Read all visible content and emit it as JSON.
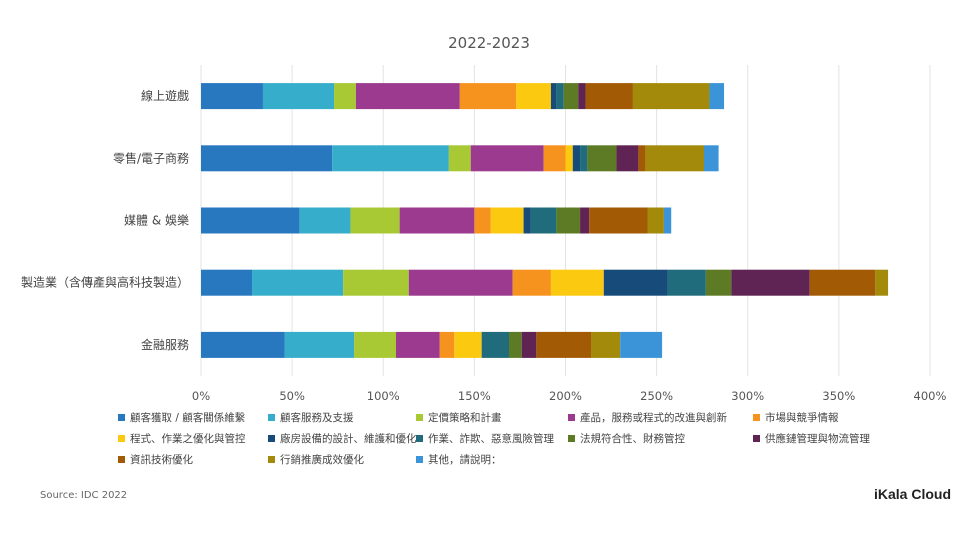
{
  "chart_data": {
    "type": "bar",
    "orientation": "horizontal",
    "stacked": true,
    "title": "2022-2023",
    "categories": [
      "線上遊戲",
      "零售/電子商務",
      "媒體 & 娛樂",
      "製造業（含傳產與高科技製造）",
      "金融服務"
    ],
    "xlim": [
      0,
      400
    ],
    "xticks": [
      "0%",
      "50%",
      "100%",
      "150%",
      "200%",
      "250%",
      "300%",
      "350%",
      "400%"
    ],
    "grid": true,
    "legend_position": "bottom",
    "series": [
      {
        "name": "顧客獲取 / 顧客關係維繫",
        "color": "#2878c0",
        "values": [
          34,
          72,
          54,
          28,
          46
        ]
      },
      {
        "name": "顧客服務及支援",
        "color": "#36aecb",
        "values": [
          39,
          64,
          28,
          50,
          38
        ]
      },
      {
        "name": "定價策略和計畫",
        "color": "#a8c934",
        "values": [
          12,
          12,
          27,
          36,
          23
        ]
      },
      {
        "name": "產品，服務或程式的改進與創新",
        "color": "#9b3a8e",
        "values": [
          57,
          40,
          41,
          57,
          24
        ]
      },
      {
        "name": "市場與競爭情報",
        "color": "#f6931e",
        "values": [
          31,
          12,
          9,
          21,
          8
        ]
      },
      {
        "name": "程式、作業之優化與管控",
        "color": "#fcc911",
        "values": [
          19,
          4,
          18,
          29,
          15
        ]
      },
      {
        "name": "廠房設備的設計、維護和優化",
        "color": "#174b7a",
        "values": [
          3,
          4,
          4,
          35,
          0
        ]
      },
      {
        "name": "作業、詐欺、惡意風險管理",
        "color": "#216c7c",
        "values": [
          4,
          4,
          14,
          21,
          15
        ]
      },
      {
        "name": "法規符合性、財務管控",
        "color": "#5c7b24",
        "values": [
          8,
          16,
          13,
          14,
          7
        ]
      },
      {
        "name": "供應鏈管理與物流管理",
        "color": "#5f2453",
        "values": [
          4,
          12,
          5,
          43,
          8
        ]
      },
      {
        "name": "資訊技術優化",
        "color": "#a25a05",
        "values": [
          26,
          4,
          32,
          36,
          30
        ]
      },
      {
        "name": "行銷推廣成效優化",
        "color": "#a38a0b",
        "values": [
          42,
          32,
          9,
          7,
          16
        ]
      },
      {
        "name": "其他，請說明：",
        "color": "#3b93d8",
        "values": [
          8,
          8,
          4,
          0,
          23
        ]
      }
    ]
  },
  "footer": {
    "source": "Source: IDC 2022",
    "brand": "iKala Cloud"
  }
}
